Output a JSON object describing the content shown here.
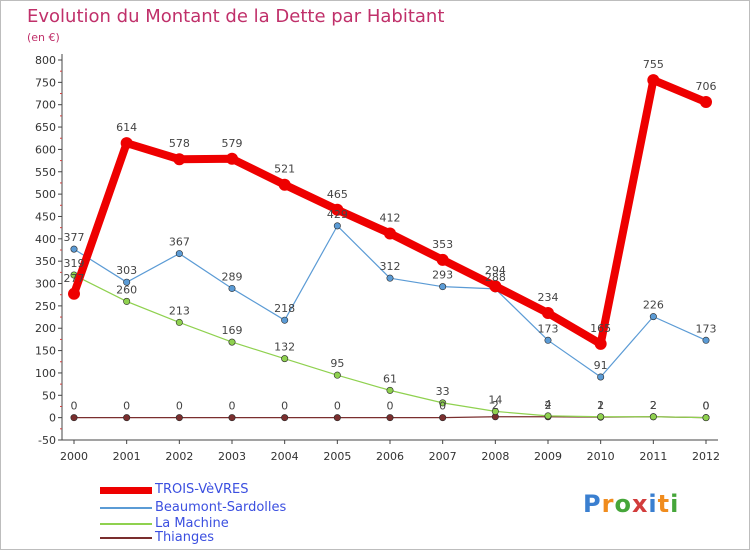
{
  "title": "Evolution du Montant de la Dette par Habitant",
  "unit": "(en €)",
  "logo": {
    "text": "Proxiti",
    "colors": [
      "#3a7fd0",
      "#f08c1e",
      "#46a63a",
      "#d23c3c",
      "#3a7fd0",
      "#f08c1e",
      "#46a63a"
    ]
  },
  "chart_data": {
    "type": "line",
    "title": "Evolution du Montant de la Dette par Habitant",
    "ylabel": "(en €)",
    "ylim": [
      -50,
      800
    ],
    "yticks": [
      -50,
      0,
      50,
      100,
      150,
      200,
      250,
      300,
      350,
      400,
      450,
      500,
      550,
      600,
      650,
      700,
      750,
      800
    ],
    "grid": false,
    "legend_position": "bottom-left",
    "x": [
      "2000",
      "2001",
      "2002",
      "2003",
      "2004",
      "2005",
      "2006",
      "2007",
      "2008",
      "2009",
      "2010",
      "2011",
      "2012"
    ],
    "series": [
      {
        "name": "TROIS-VèVRES",
        "color": "#ee0000",
        "width": 8,
        "marker": 6,
        "values": [
          277,
          614,
          578,
          579,
          521,
          465,
          412,
          353,
          294,
          234,
          165,
          755,
          706
        ],
        "labels": [
          "277",
          "614",
          "578",
          "579",
          "521",
          "465",
          "412",
          "353",
          "294",
          "234",
          "165",
          "755",
          "706"
        ]
      },
      {
        "name": "Beaumont-Sardolles",
        "color": "#5b9bd5",
        "width": 1.2,
        "marker": 3.2,
        "values": [
          377,
          303,
          367,
          289,
          218,
          429,
          312,
          293,
          288,
          173,
          91,
          226,
          173
        ],
        "labels": [
          "377",
          "303",
          "367",
          "289",
          "218",
          "429",
          "312",
          "293",
          "288",
          "173",
          "91",
          "226",
          "173"
        ]
      },
      {
        "name": "La Machine",
        "color": "#8fd14f",
        "width": 1.2,
        "marker": 3.2,
        "values": [
          319,
          260,
          213,
          169,
          132,
          95,
          61,
          33,
          14,
          4,
          2,
          2,
          0
        ],
        "labels": [
          "319",
          "260",
          "213",
          "169",
          "132",
          "95",
          "61",
          "33",
          "14",
          "4",
          "2",
          "2",
          "0"
        ]
      },
      {
        "name": "Thianges",
        "color": "#7a2e2e",
        "width": 1.2,
        "marker": 3.2,
        "values": [
          0,
          0,
          0,
          0,
          0,
          0,
          0,
          0,
          2,
          2,
          1,
          2,
          0
        ],
        "labels": [
          "0",
          "0",
          "0",
          "0",
          "0",
          "0",
          "0",
          "0",
          "2",
          "2",
          "1",
          "2",
          "0"
        ]
      }
    ]
  },
  "legend": [
    {
      "label": "TROIS-VèVRES",
      "color": "#ee0000",
      "text_color": "#3b4fe0",
      "thickness": 7
    },
    {
      "label": "Beaumont-Sardolles",
      "color": "#5b9bd5",
      "text_color": "#3b4fe0",
      "thickness": 2
    },
    {
      "label": "La Machine",
      "color": "#8fd14f",
      "text_color": "#3b4fe0",
      "thickness": 2
    },
    {
      "label": "Thianges",
      "color": "#7a2e2e",
      "text_color": "#3b4fe0",
      "thickness": 2
    }
  ]
}
